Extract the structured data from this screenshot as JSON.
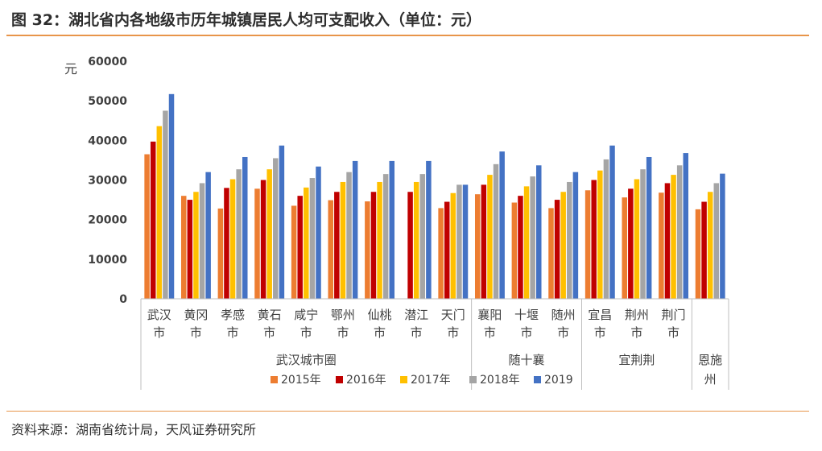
{
  "title": "图 32：湖北省内各地级市历年城镇居民人均可支配收入（单位：元）",
  "source": "资料来源：湖南省统计局，天风证券研究所",
  "chart_data": {
    "type": "bar",
    "ylabel": "元",
    "ylim": [
      0,
      60000
    ],
    "yticks": [
      "0",
      "10000",
      "20000",
      "30000",
      "40000",
      "50000",
      "60000"
    ],
    "grid": false,
    "legend_position": "bottom",
    "categories": [
      "武汉市",
      "黄冈市",
      "孝感市",
      "黄石市",
      "咸宁市",
      "鄂州市",
      "仙桃市",
      "潜江市",
      "天门市",
      "襄阳市",
      "十堰市",
      "随州市",
      "宜昌市",
      "荆州市",
      "荆门市",
      ""
    ],
    "category_lines": [
      [
        "武汉",
        "市"
      ],
      [
        "黄冈",
        "市"
      ],
      [
        "孝感",
        "市"
      ],
      [
        "黄石",
        "市"
      ],
      [
        "咸宁",
        "市"
      ],
      [
        "鄂州",
        "市"
      ],
      [
        "仙桃",
        "市"
      ],
      [
        "潜江",
        "市"
      ],
      [
        "天门",
        "市"
      ],
      [
        "襄阳",
        "市"
      ],
      [
        "十堰",
        "市"
      ],
      [
        "随州",
        "市"
      ],
      [
        "宜昌",
        "市"
      ],
      [
        "荆州",
        "市"
      ],
      [
        "荆门",
        "市"
      ],
      [
        "",
        ""
      ]
    ],
    "groups": [
      {
        "label": [
          "武汉城市圈"
        ],
        "count": 9
      },
      {
        "label": [
          "随十襄"
        ],
        "count": 3
      },
      {
        "label": [
          "宜荆荆"
        ],
        "count": 3
      },
      {
        "label": [
          "恩施",
          "州"
        ],
        "count": 1
      }
    ],
    "series": [
      {
        "name": "2015年",
        "color": "#ed7d31",
        "values": [
          36500,
          26000,
          22800,
          27800,
          23500,
          24900,
          24600,
          null,
          22900,
          26400,
          24300,
          22900,
          27400,
          25600,
          26800,
          22600
        ]
      },
      {
        "name": "2016年",
        "color": "#c00000",
        "values": [
          39700,
          25000,
          28000,
          30000,
          26000,
          27000,
          27000,
          27000,
          24500,
          28800,
          26000,
          25000,
          30000,
          27800,
          29200,
          24500
        ]
      },
      {
        "name": "2017年",
        "color": "#ffc000",
        "values": [
          43600,
          27000,
          30200,
          32700,
          28100,
          29500,
          29500,
          29500,
          26700,
          31300,
          28400,
          27000,
          32400,
          30200,
          31300,
          27000
        ]
      },
      {
        "name": "2018年",
        "color": "#a5a5a5",
        "values": [
          47500,
          29200,
          32700,
          35500,
          30500,
          32000,
          31500,
          31500,
          28800,
          34000,
          30900,
          29500,
          35200,
          32700,
          33700,
          29200
        ]
      },
      {
        "name": "2019",
        "color": "#4472c4",
        "values": [
          51700,
          32000,
          35800,
          38700,
          33400,
          34800,
          34800,
          34800,
          28800,
          37200,
          33700,
          32000,
          38700,
          35800,
          36800,
          31600
        ]
      }
    ]
  }
}
